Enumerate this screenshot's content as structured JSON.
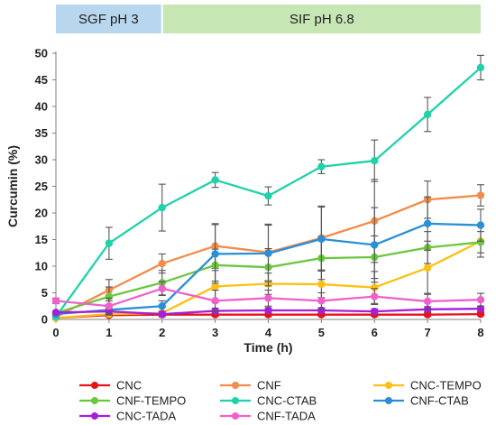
{
  "chart_data": {
    "type": "line",
    "xlabel": "Time (h)",
    "ylabel": "Curcumin (%)",
    "xlim": [
      0,
      8
    ],
    "ylim": [
      0,
      50
    ],
    "x": [
      0,
      1,
      2,
      3,
      4,
      5,
      6,
      7,
      8
    ],
    "x_ticks": [
      "0",
      "1",
      "2",
      "3",
      "4",
      "5",
      "6",
      "7",
      "8"
    ],
    "y_ticks": [
      "0",
      "5",
      "10",
      "15",
      "20",
      "25",
      "30",
      "35",
      "40",
      "45",
      "50"
    ],
    "grid": false,
    "legend_position": "bottom",
    "phases": [
      {
        "label": "SGF pH 3",
        "x_start": 0,
        "x_end": 2,
        "color": "#b8d7ee"
      },
      {
        "label": "SIF pH 6.8",
        "x_start": 2,
        "x_end": 8,
        "color": "#c6e6b4"
      }
    ],
    "series": [
      {
        "name": "CNC",
        "color": "#e8121c",
        "values": [
          0.3,
          0.8,
          0.9,
          0.9,
          0.9,
          0.9,
          0.9,
          0.9,
          1.0
        ],
        "errors": [
          0.2,
          0.3,
          0.3,
          0.3,
          0.3,
          0.3,
          0.3,
          0.3,
          0.3
        ]
      },
      {
        "name": "CNF",
        "color": "#f28c4a",
        "values": [
          0.5,
          5.5,
          10.5,
          13.8,
          12.6,
          15.3,
          18.5,
          22.5,
          23.3
        ],
        "errors": [
          0.3,
          2.0,
          1.8,
          4.2,
          5.3,
          6.0,
          7.8,
          3.5,
          2.0
        ]
      },
      {
        "name": "CNC-TEMPO",
        "color": "#fdc012",
        "values": [
          0.3,
          1.0,
          1.2,
          6.2,
          6.7,
          6.6,
          6.0,
          9.7,
          14.7
        ],
        "errors": [
          0.2,
          0.3,
          0.3,
          3.0,
          2.0,
          2.5,
          3.0,
          5.0,
          3.0
        ]
      },
      {
        "name": "CNF-TEMPO",
        "color": "#6cc63f",
        "values": [
          1.2,
          4.3,
          6.9,
          10.2,
          9.8,
          11.5,
          11.7,
          13.5,
          14.5
        ],
        "errors": [
          0.4,
          1.8,
          2.3,
          3.0,
          3.5,
          4.0,
          4.0,
          3.0,
          2.0
        ]
      },
      {
        "name": "CNC-CTAB",
        "color": "#1fd2a9",
        "values": [
          0.5,
          14.3,
          21.0,
          26.2,
          23.2,
          28.7,
          29.8,
          38.5,
          47.3
        ],
        "errors": [
          0.3,
          3.0,
          4.4,
          1.4,
          1.7,
          1.3,
          3.9,
          3.2,
          2.3
        ]
      },
      {
        "name": "CNF-CTAB",
        "color": "#2a8fd6",
        "values": [
          1.0,
          1.8,
          2.5,
          12.3,
          12.4,
          15.1,
          14.0,
          18.0,
          17.7
        ],
        "errors": [
          0.3,
          1.0,
          1.0,
          5.5,
          5.3,
          6.0,
          7.0,
          5.0,
          3.0
        ]
      },
      {
        "name": "CNC-TADA",
        "color": "#a51fd8",
        "values": [
          1.3,
          1.5,
          1.0,
          1.6,
          1.7,
          1.7,
          1.5,
          1.9,
          2.0
        ],
        "errors": [
          0.3,
          0.5,
          0.5,
          0.5,
          0.5,
          0.5,
          0.5,
          0.5,
          0.5
        ]
      },
      {
        "name": "CNF-TADA",
        "color": "#f060cc",
        "values": [
          3.5,
          2.5,
          5.8,
          3.5,
          4.0,
          3.5,
          4.3,
          3.4,
          3.7
        ],
        "errors": [
          0.5,
          1.5,
          1.3,
          2.0,
          1.5,
          1.5,
          1.5,
          1.5,
          1.2
        ]
      }
    ]
  }
}
